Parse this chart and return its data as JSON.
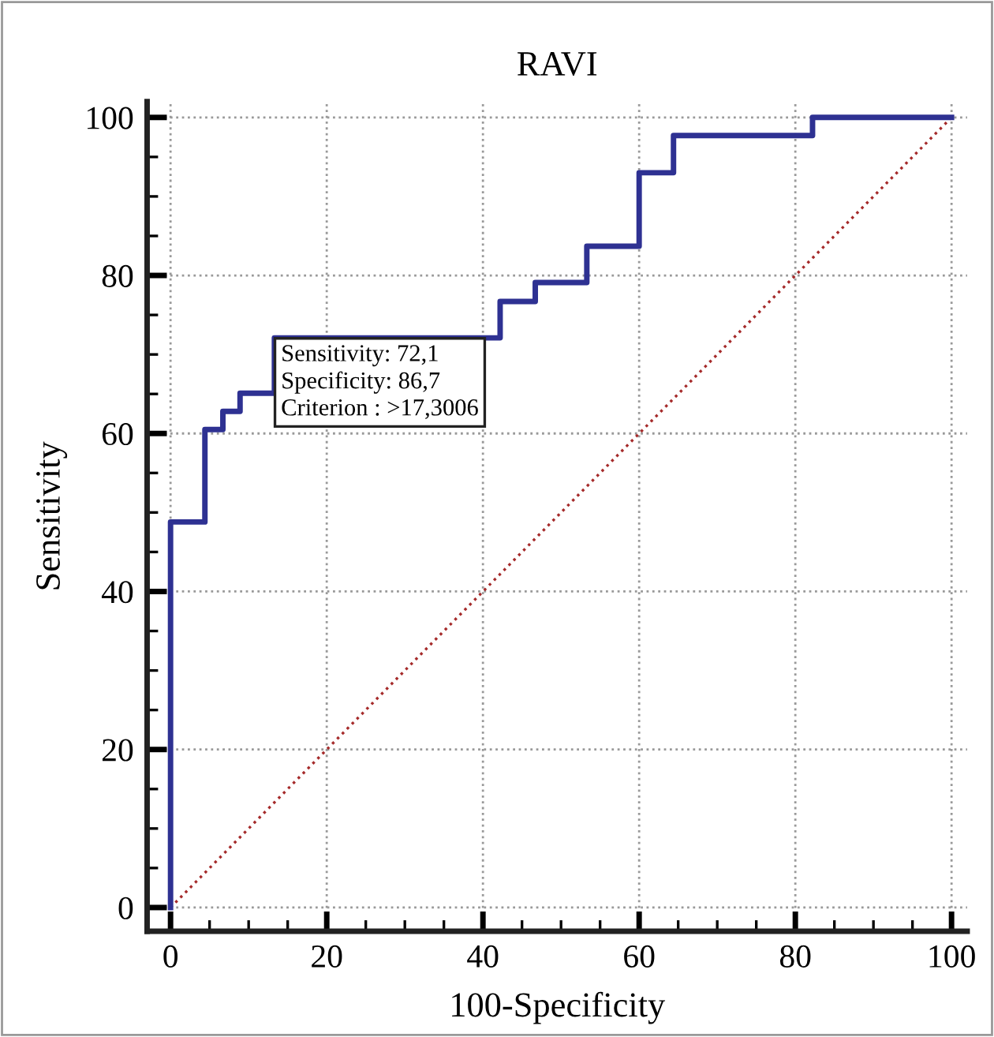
{
  "chart_data": {
    "type": "step",
    "title": "RAVI",
    "xlabel": "100-Specificity",
    "ylabel": "Sensitivity",
    "series": [
      {
        "color": "#2e3192",
        "x": [
          0,
          0,
          4.4,
          6.7,
          8.9,
          13.3,
          42.2,
          46.7,
          53.3,
          60,
          64.4,
          82.2,
          100
        ],
        "values": [
          0,
          48.8,
          60.5,
          62.8,
          65.1,
          72.1,
          76.7,
          79.1,
          83.7,
          93,
          97.7,
          100,
          100
        ],
        "line_style": "solid"
      },
      {
        "type": "line",
        "color": "#a52a2a",
        "x": [
          0,
          100
        ],
        "values": [
          0,
          100
        ],
        "line_style": "dotted"
      }
    ],
    "annotations": [
      {
        "text": "Sensitivity: 72,1\nSpecificity: 86,7\nCriterion : >17,3006",
        "x": 13.3,
        "y": 72.1
      }
    ],
    "xlim": [
      -3,
      102
    ],
    "ylim": [
      -3,
      102
    ],
    "xticks": [
      0,
      20,
      40,
      60,
      80,
      100
    ],
    "yticks": [
      0,
      20,
      40,
      60,
      80,
      100
    ],
    "grid": true,
    "marker": "none"
  }
}
